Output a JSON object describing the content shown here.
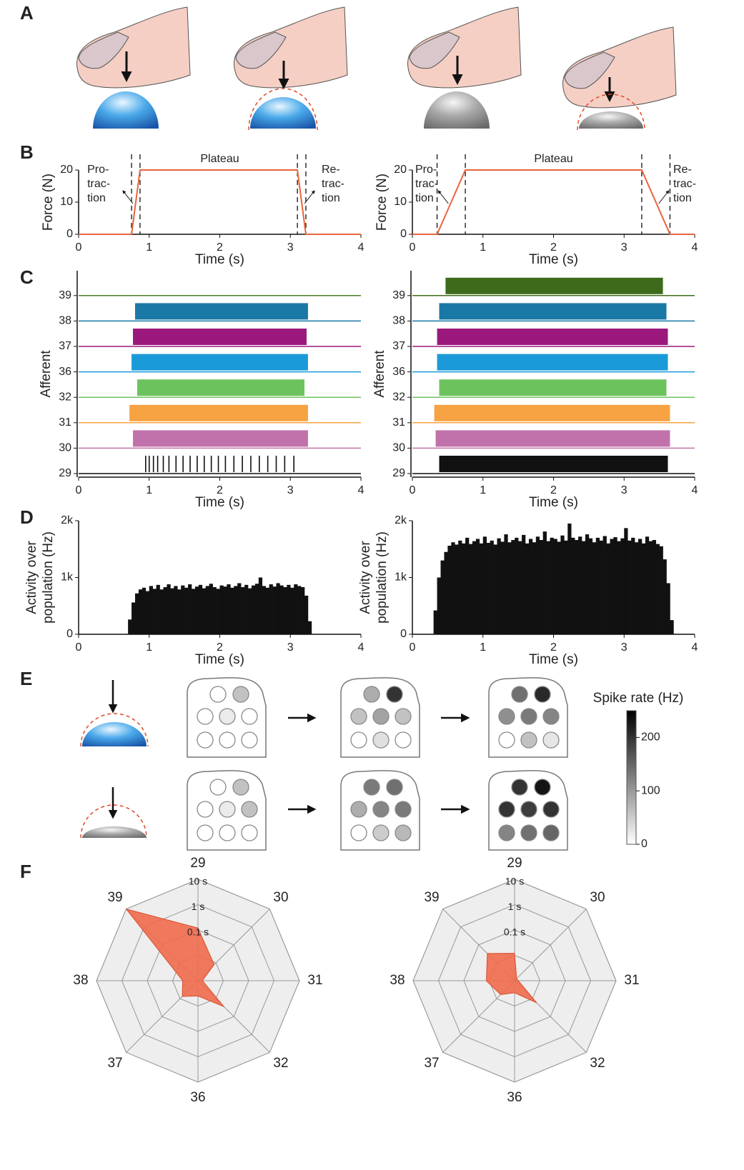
{
  "panel_labels": [
    "A",
    "B",
    "C",
    "D",
    "E",
    "F"
  ],
  "chart_data": [
    {
      "type": "line",
      "title": "Plateau",
      "xlabel": "Time (s)",
      "ylabel": "Force (N)",
      "annotations": [
        [
          "Pro-",
          "trac-",
          "tion"
        ],
        [
          "Re-",
          "trac-",
          "tion"
        ]
      ],
      "x": [
        0,
        0.75,
        0.87,
        3.1,
        3.22,
        4
      ],
      "values": [
        0,
        0,
        20,
        20,
        0,
        0
      ],
      "color": "#e8643c",
      "xlim": [
        0,
        4
      ],
      "ylim": [
        0,
        20
      ],
      "xticks": [
        0,
        1,
        2,
        3,
        4
      ],
      "yticks": [
        0,
        10,
        20
      ]
    },
    {
      "type": "line",
      "title": "Plateau",
      "xlabel": "Time (s)",
      "ylabel": "Force (N)",
      "annotations": [
        [
          "Pro-",
          "trac-",
          "tion"
        ],
        [
          "Re-",
          "trac-",
          "tion"
        ]
      ],
      "x": [
        0,
        0.35,
        0.75,
        3.25,
        3.65,
        4
      ],
      "values": [
        0,
        0,
        20,
        20,
        0,
        0
      ],
      "color": "#e8643c",
      "xlim": [
        0,
        4
      ],
      "ylim": [
        0,
        20
      ],
      "xticks": [
        0,
        1,
        2,
        3,
        4
      ],
      "yticks": [
        0,
        10,
        20
      ]
    },
    {
      "type": "raster",
      "xlabel": "Time (s)",
      "ylabel": "Afferent",
      "categories": [
        "29",
        "30",
        "31",
        "32",
        "36",
        "37",
        "38",
        "39"
      ],
      "colors": [
        "#111111",
        "#c272aa",
        "#f7a343",
        "#6cc35e",
        "#1b9ad9",
        "#9b197c",
        "#1a78a5",
        "#4a7d22"
      ],
      "onsets": [
        null,
        0.77,
        0.72,
        0.83,
        0.75,
        0.77,
        0.8,
        null
      ],
      "offsets": [
        null,
        3.25,
        3.25,
        3.2,
        3.25,
        3.23,
        3.25,
        null
      ],
      "spikes": [
        [
          0.95,
          1.0,
          1.06,
          1.12,
          1.2,
          1.28,
          1.38,
          1.48,
          1.58,
          1.68,
          1.78,
          1.88,
          1.98,
          2.08,
          2.2,
          2.32,
          2.44,
          2.56,
          2.68,
          2.8,
          2.92,
          3.05
        ],
        null,
        null,
        null,
        null,
        null,
        null,
        null
      ],
      "xlim": [
        0,
        4
      ],
      "xticks": [
        0,
        1,
        2,
        3,
        4
      ]
    },
    {
      "type": "raster",
      "xlabel": "Time (s)",
      "ylabel": "Afferent",
      "categories": [
        "29",
        "30",
        "31",
        "32",
        "36",
        "37",
        "38",
        "39"
      ],
      "colors": [
        "#111111",
        "#c272aa",
        "#f7a343",
        "#6cc35e",
        "#1b9ad9",
        "#9b197c",
        "#1a78a5",
        "#3e6b1b"
      ],
      "onsets": [
        0.38,
        0.33,
        0.31,
        0.38,
        0.35,
        0.35,
        0.38,
        0.47
      ],
      "offsets": [
        3.62,
        3.65,
        3.65,
        3.6,
        3.62,
        3.62,
        3.6,
        3.55
      ],
      "xlim": [
        0,
        4
      ],
      "xticks": [
        0,
        1,
        2,
        3,
        4
      ]
    },
    {
      "type": "histogram",
      "xlabel": "Time (s)",
      "ylabel": [
        "Activity over",
        "population (Hz)"
      ],
      "color": "#111111",
      "bins": [
        0,
        0.05,
        0.1,
        0.15,
        0.2,
        0.25,
        0.3,
        0.35,
        0.4,
        0.45,
        0.5,
        0.55,
        0.6,
        0.65,
        0.7,
        0.75,
        0.8,
        0.85,
        0.9,
        0.95,
        1,
        1.05,
        1.1,
        1.15,
        1.2,
        1.25,
        1.3,
        1.35,
        1.4,
        1.45,
        1.5,
        1.55,
        1.6,
        1.65,
        1.7,
        1.75,
        1.8,
        1.85,
        1.9,
        1.95,
        2,
        2.05,
        2.1,
        2.15,
        2.2,
        2.25,
        2.3,
        2.35,
        2.4,
        2.45,
        2.5,
        2.55,
        2.6,
        2.65,
        2.7,
        2.75,
        2.8,
        2.85,
        2.9,
        2.95,
        3,
        3.05,
        3.1,
        3.15,
        3.2,
        3.25,
        3.3,
        3.35,
        3.4,
        3.45,
        3.5,
        3.55,
        3.6,
        3.65,
        3.7,
        3.75,
        3.8,
        3.85,
        3.9,
        3.95,
        4
      ],
      "values": [
        0,
        0,
        0,
        0,
        0,
        0,
        0,
        0,
        0,
        0,
        0,
        0,
        0,
        0,
        260,
        560,
        720,
        790,
        820,
        760,
        850,
        800,
        870,
        790,
        830,
        880,
        810,
        850,
        790,
        860,
        820,
        880,
        800,
        840,
        870,
        810,
        850,
        890,
        830,
        800,
        860,
        840,
        880,
        820,
        850,
        900,
        830,
        870,
        810,
        860,
        890,
        1000,
        850,
        820,
        880,
        840,
        900,
        860,
        830,
        870,
        820,
        880,
        850,
        830,
        680,
        230,
        0,
        0,
        0,
        0,
        0,
        0,
        0,
        0,
        0,
        0,
        0,
        0,
        0,
        0
      ],
      "xlim": [
        0,
        4
      ],
      "ylim": [
        0,
        2000
      ],
      "xticks": [
        0,
        1,
        2,
        3,
        4
      ],
      "yticks": [
        0,
        {
          "value": 1000,
          "label": "1k"
        },
        {
          "value": 2000,
          "label": "2k"
        }
      ]
    },
    {
      "type": "histogram",
      "xlabel": "Time (s)",
      "ylabel": [
        "Activity over",
        "population (Hz)"
      ],
      "color": "#111111",
      "bins": [
        0,
        0.05,
        0.1,
        0.15,
        0.2,
        0.25,
        0.3,
        0.35,
        0.4,
        0.45,
        0.5,
        0.55,
        0.6,
        0.65,
        0.7,
        0.75,
        0.8,
        0.85,
        0.9,
        0.95,
        1,
        1.05,
        1.1,
        1.15,
        1.2,
        1.25,
        1.3,
        1.35,
        1.4,
        1.45,
        1.5,
        1.55,
        1.6,
        1.65,
        1.7,
        1.75,
        1.8,
        1.85,
        1.9,
        1.95,
        2,
        2.05,
        2.1,
        2.15,
        2.2,
        2.25,
        2.3,
        2.35,
        2.4,
        2.45,
        2.5,
        2.55,
        2.6,
        2.65,
        2.7,
        2.75,
        2.8,
        2.85,
        2.9,
        2.95,
        3,
        3.05,
        3.1,
        3.15,
        3.2,
        3.25,
        3.3,
        3.35,
        3.4,
        3.45,
        3.5,
        3.55,
        3.6,
        3.65,
        3.7,
        3.75,
        3.8,
        3.85,
        3.9,
        3.95,
        4
      ],
      "values": [
        0,
        0,
        0,
        0,
        0,
        0,
        420,
        1000,
        1300,
        1450,
        1560,
        1620,
        1580,
        1650,
        1600,
        1700,
        1590,
        1640,
        1680,
        1600,
        1720,
        1610,
        1650,
        1580,
        1690,
        1630,
        1760,
        1620,
        1660,
        1700,
        1640,
        1750,
        1600,
        1680,
        1620,
        1720,
        1660,
        1810,
        1640,
        1700,
        1680,
        1630,
        1740,
        1650,
        1950,
        1700,
        1660,
        1720,
        1640,
        1760,
        1690,
        1620,
        1700,
        1650,
        1730,
        1600,
        1680,
        1710,
        1640,
        1690,
        1870,
        1650,
        1700,
        1620,
        1680,
        1600,
        1720,
        1640,
        1660,
        1590,
        1550,
        1320,
        900,
        250,
        0,
        0,
        0,
        0,
        0,
        0
      ],
      "xlim": [
        0,
        4
      ],
      "ylim": [
        0,
        2000
      ],
      "xticks": [
        0,
        1,
        2,
        3,
        4
      ],
      "yticks": [
        0,
        {
          "value": 1000,
          "label": "1k"
        },
        {
          "value": 2000,
          "label": "2k"
        }
      ]
    },
    {
      "type": "spatial-map",
      "colorbar_label": "Spike rate (Hz)",
      "zlim": [
        0,
        250
      ],
      "zticks": [
        0,
        100,
        200
      ],
      "maps": [
        [
          0,
          60,
          0,
          20,
          0,
          0,
          0,
          0
        ],
        [
          80,
          200,
          60,
          90,
          60,
          0,
          30,
          0
        ],
        [
          140,
          210,
          110,
          130,
          120,
          0,
          60,
          25
        ],
        [
          0,
          60,
          0,
          20,
          60,
          0,
          0,
          0
        ],
        [
          130,
          140,
          80,
          120,
          130,
          0,
          50,
          70
        ],
        [
          200,
          230,
          200,
          190,
          200,
          120,
          140,
          150
        ]
      ]
    },
    {
      "type": "radar",
      "categories": [
        "29",
        "30",
        "31",
        "32",
        "36",
        "37",
        "38",
        "39"
      ],
      "values": [
        0.12,
        0.008,
        0.0015,
        0.028,
        0.004,
        0.0075,
        0.004,
        10
      ],
      "color": "#ef6a4c",
      "rscale": "log",
      "rlim": [
        0.001,
        10
      ],
      "rticks": [
        {
          "value": 0.1,
          "label": "0.1 s"
        },
        {
          "value": 1,
          "label": "1 s"
        },
        {
          "value": 10,
          "label": "10 s"
        }
      ]
    },
    {
      "type": "radar",
      "categories": [
        "29",
        "30",
        "31",
        "32",
        "36",
        "37",
        "38",
        "39"
      ],
      "values": [
        0.012,
        0.0013,
        0.0014,
        0.017,
        0.003,
        0.006,
        0.013,
        0.033
      ],
      "color": "#ef6a4c",
      "rscale": "log",
      "rlim": [
        0.001,
        10
      ],
      "rticks": [
        {
          "value": 0.1,
          "label": "0.1 s"
        },
        {
          "value": 1,
          "label": "1 s"
        },
        {
          "value": 10,
          "label": "10 s"
        }
      ]
    }
  ]
}
